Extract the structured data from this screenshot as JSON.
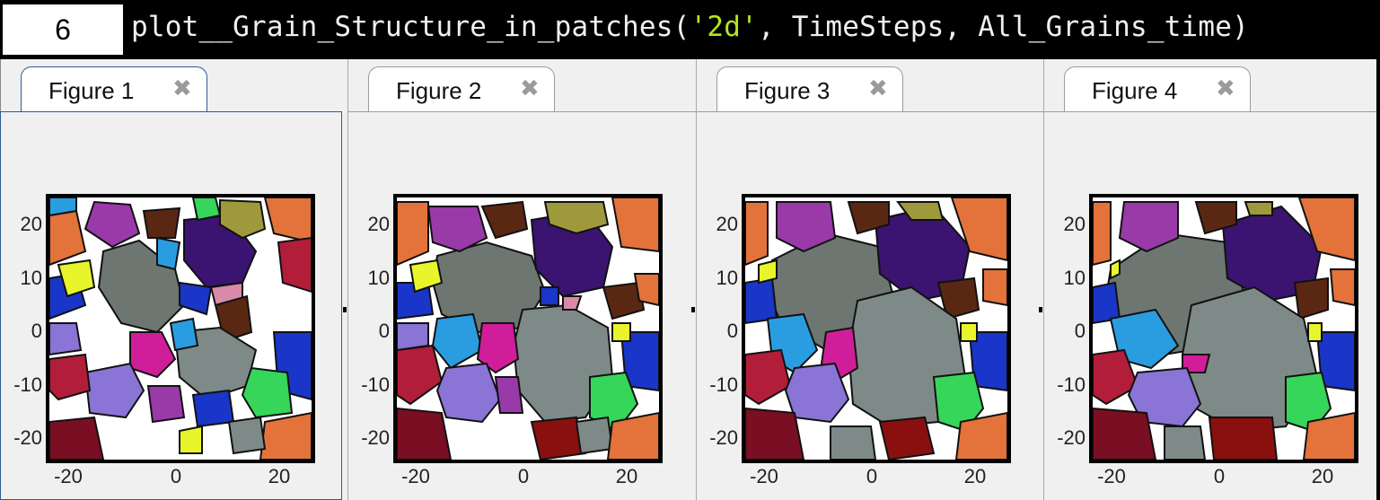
{
  "cell": {
    "number": "6",
    "code_pre": "plot__Grain_Structure_in_patches(",
    "code_str": "'2d'",
    "code_post": ", TimeSteps, All_Grains_time)"
  },
  "figures": [
    {
      "tab_label": "Figure 1",
      "close_glyph": "✖",
      "active": true
    },
    {
      "tab_label": "Figure 2",
      "close_glyph": "✖",
      "active": false
    },
    {
      "tab_label": "Figure 3",
      "close_glyph": "✖",
      "active": false
    },
    {
      "tab_label": "Figure 4",
      "close_glyph": "✖",
      "active": false
    }
  ],
  "axes": {
    "yticks": [
      "20",
      "10",
      "0",
      "-10",
      "-20"
    ],
    "xticks": [
      "-20",
      "0",
      "20"
    ]
  },
  "grain_colors": {
    "grey_large": "#6d7670",
    "grey_light": "#7e8a87",
    "navy": "#3a1470",
    "blue": "#1a36c8",
    "orange": "#e3733a",
    "crimson": "#b21e3a",
    "maroon": "#7a0e22",
    "magenta": "#d01e9a",
    "purple_light": "#8a74d6",
    "violet": "#9a3aa8",
    "cyan": "#2a9de0",
    "green": "#35d65a",
    "brown": "#5a2812",
    "olive": "#9e9a3c",
    "yellow": "#e8f52a",
    "red": "#8a1010"
  }
}
